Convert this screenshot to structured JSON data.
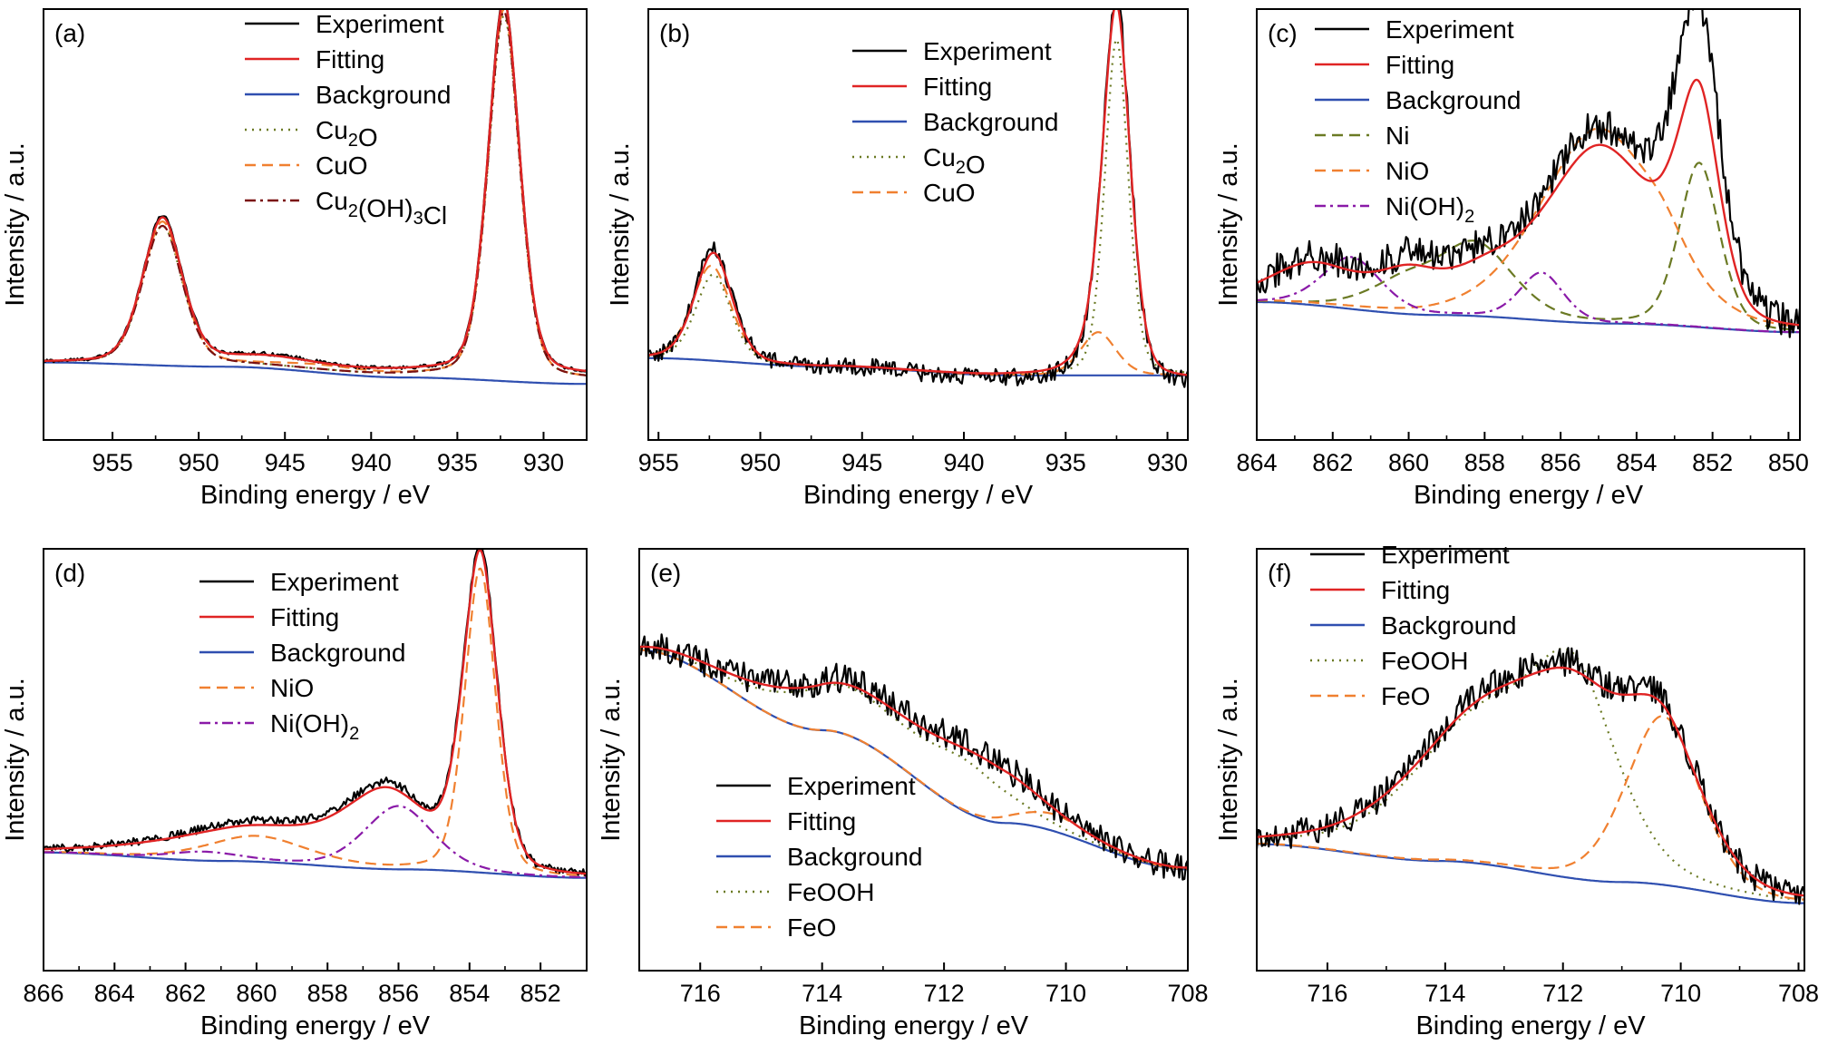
{
  "colors": {
    "Experiment": "#000000",
    "Fitting": "#e02424",
    "Background": "#2f4fb0",
    "Cu2O": "#6b7a24",
    "CuO": "#f08030",
    "Cu2(OH)3Cl": "#7a1010",
    "Ni": "#6b7a24",
    "NiO": "#f08030",
    "Ni(OH)2": "#8a1aa8",
    "FeOOH": "#6b7a24",
    "FeO": "#f08030"
  },
  "chart_data": [
    {
      "type": "line",
      "panel_label": "(a)",
      "xlabel": "Binding energy / eV",
      "ylabel": "Intensity / a.u.",
      "xlim": [
        959,
        927.5
      ],
      "ylim": [
        0,
        1
      ],
      "xticks": [
        955,
        950,
        945,
        940,
        935,
        930
      ],
      "legend_position": "top-center",
      "series": [
        {
          "name": "Experiment",
          "style": "solid",
          "peaks": [
            [
              952.1,
              0.34,
              1.2
            ],
            [
              932.3,
              0.87,
              0.95
            ],
            [
              946.0,
              0.018,
              2.5
            ]
          ],
          "bg": [
            0.18,
            0.18,
            0.16,
            0.15
          ],
          "noise": 0.004
        },
        {
          "name": "Fitting",
          "style": "solid",
          "peaks": [
            [
              952.1,
              0.335,
              1.2
            ],
            [
              932.3,
              0.865,
              0.95
            ],
            [
              946.0,
              0.015,
              2.5
            ]
          ],
          "bg": [
            0.18,
            0.18,
            0.16,
            0.15
          ]
        },
        {
          "name": "Background",
          "style": "solid",
          "peaks": [],
          "bg": [
            0.18,
            0.17,
            0.145,
            0.13
          ]
        },
        {
          "name": "Cu2O",
          "style": "dotted",
          "peaks": [
            [
              952.1,
              0.32,
              1.2
            ],
            [
              932.3,
              0.84,
              0.95
            ]
          ],
          "bg": [
            0.18,
            0.175,
            0.15,
            0.14
          ]
        },
        {
          "name": "CuO",
          "style": "dashed",
          "peaks": [
            [
              952.1,
              0.33,
              1.2
            ],
            [
              932.3,
              0.855,
              0.95
            ],
            [
              943.0,
              0.01,
              2.5
            ]
          ],
          "bg": [
            0.18,
            0.175,
            0.15,
            0.14
          ]
        },
        {
          "name": "Cu2(OH)3Cl",
          "style": "dashdot",
          "peaks": [
            [
              952.1,
              0.32,
              1.2
            ],
            [
              932.3,
              0.85,
              0.95
            ]
          ],
          "bg": [
            0.18,
            0.175,
            0.15,
            0.14
          ]
        }
      ],
      "legend": [
        "Experiment",
        "Fitting",
        "Background",
        "Cu2O",
        "CuO",
        "Cu2(OH)3Cl"
      ]
    },
    {
      "type": "line",
      "panel_label": "(b)",
      "xlabel": "Binding energy / eV",
      "ylabel": "Intensity / a.u.",
      "xlim": [
        955.5,
        929
      ],
      "ylim": [
        0,
        1
      ],
      "xticks": [
        955,
        950,
        945,
        940,
        935,
        930
      ],
      "legend_position": "top-right",
      "series": [
        {
          "name": "Experiment",
          "style": "solid",
          "peaks": [
            [
              952.3,
              0.26,
              0.95
            ],
            [
              932.5,
              0.87,
              0.7
            ],
            [
              933.5,
              0.05,
              1.0
            ]
          ],
          "bg": [
            0.19,
            0.17,
            0.14,
            0.13
          ],
          "noise": 0.02
        },
        {
          "name": "Fitting",
          "style": "solid",
          "peaks": [
            [
              952.3,
              0.25,
              0.95
            ],
            [
              932.5,
              0.84,
              0.7
            ],
            [
              933.5,
              0.05,
              1.0
            ]
          ],
          "bg": [
            0.19,
            0.17,
            0.15,
            0.14
          ]
        },
        {
          "name": "Background",
          "style": "solid",
          "peaks": [],
          "bg": [
            0.19,
            0.17,
            0.15,
            0.15
          ]
        },
        {
          "name": "Cu2O",
          "style": "dotted",
          "peaks": [
            [
              952.3,
              0.2,
              0.9
            ],
            [
              932.5,
              0.78,
              0.6
            ]
          ],
          "bg": [
            0.19,
            0.17,
            0.15,
            0.15
          ]
        },
        {
          "name": "CuO",
          "style": "dashed",
          "peaks": [
            [
              952.4,
              0.22,
              1.0
            ],
            [
              933.4,
              0.1,
              0.9
            ]
          ],
          "bg": [
            0.19,
            0.17,
            0.15,
            0.15
          ]
        }
      ],
      "legend": [
        "Experiment",
        "Fitting",
        "Background",
        "Cu2O",
        "CuO"
      ]
    },
    {
      "type": "line",
      "panel_label": "(c)",
      "xlabel": "Binding energy / eV",
      "ylabel": "Intensity / a.u.",
      "xlim": [
        864,
        849.7
      ],
      "ylim": [
        0,
        1
      ],
      "xticks": [
        864,
        862,
        860,
        858,
        856,
        854,
        852,
        850
      ],
      "legend_position": "top-left",
      "series": [
        {
          "name": "Experiment",
          "style": "solid",
          "peaks": [
            [
              862.5,
              0.1,
              1.2
            ],
            [
              860.0,
              0.1,
              0.9
            ],
            [
              858.0,
              0.09,
              1.0
            ],
            [
              855.0,
              0.44,
              1.5
            ],
            [
              852.35,
              0.48,
              0.55
            ],
            [
              852.6,
              0.2,
              0.8
            ]
          ],
          "bg": [
            0.32,
            0.29,
            0.27,
            0.25
          ],
          "noise": 0.04
        },
        {
          "name": "Fitting",
          "style": "solid",
          "peaks": [
            [
              862.5,
              0.09,
              1.2
            ],
            [
              860.0,
              0.08,
              0.9
            ],
            [
              858.0,
              0.07,
              1.0
            ],
            [
              855.0,
              0.4,
              1.5
            ],
            [
              852.35,
              0.45,
              0.55
            ],
            [
              853.1,
              0.05,
              0.8
            ]
          ],
          "bg": [
            0.32,
            0.29,
            0.27,
            0.25
          ]
        },
        {
          "name": "Background",
          "style": "solid",
          "peaks": [],
          "bg": [
            0.32,
            0.29,
            0.27,
            0.25
          ]
        },
        {
          "name": "Ni",
          "style": "dashed",
          "peaks": [
            [
              860.1,
              0.07,
              1.0
            ],
            [
              858.2,
              0.16,
              1.0
            ],
            [
              852.35,
              0.38,
              0.55
            ]
          ],
          "bg": [
            0.32,
            0.29,
            0.27,
            0.25
          ]
        },
        {
          "name": "NiO",
          "style": "dashed",
          "peaks": [
            [
              855.0,
              0.45,
              1.6
            ],
            [
              853.3,
              0.05,
              0.6
            ]
          ],
          "bg": [
            0.32,
            0.29,
            0.27,
            0.25
          ]
        },
        {
          "name": "Ni(OH)2",
          "style": "dashdot",
          "peaks": [
            [
              861.5,
              0.12,
              0.8
            ],
            [
              856.5,
              0.11,
              0.6
            ]
          ],
          "bg": [
            0.32,
            0.29,
            0.27,
            0.25
          ]
        }
      ],
      "legend": [
        "Experiment",
        "Fitting",
        "Background",
        "Ni",
        "NiO",
        "Ni(OH)2"
      ]
    },
    {
      "type": "line",
      "panel_label": "(d)",
      "xlabel": "Binding energy / eV",
      "ylabel": "Intensity / a.u.",
      "xlim": [
        866,
        850.7
      ],
      "ylim": [
        0,
        1
      ],
      "xticks": [
        866,
        864,
        862,
        860,
        858,
        856,
        854,
        852
      ],
      "legend_position": "top-center",
      "series": [
        {
          "name": "Experiment",
          "style": "solid",
          "peaks": [
            [
              853.7,
              0.75,
              0.5
            ],
            [
              856.3,
              0.17,
              1.2
            ],
            [
              860.0,
              0.09,
              2.5
            ]
          ],
          "bg": [
            0.28,
            0.26,
            0.24,
            0.22
          ],
          "noise": 0.01
        },
        {
          "name": "Fitting",
          "style": "solid",
          "peaks": [
            [
              853.7,
              0.74,
              0.5
            ],
            [
              856.3,
              0.16,
              1.2
            ],
            [
              860.0,
              0.08,
              2.5
            ]
          ],
          "bg": [
            0.28,
            0.26,
            0.24,
            0.22
          ]
        },
        {
          "name": "Background",
          "style": "solid",
          "peaks": [],
          "bg": [
            0.28,
            0.26,
            0.24,
            0.22
          ]
        },
        {
          "name": "NiO",
          "style": "dashed",
          "peaks": [
            [
              853.7,
              0.72,
              0.45
            ],
            [
              860.0,
              0.06,
              1.5
            ]
          ],
          "bg": [
            0.28,
            0.26,
            0.24,
            0.22
          ]
        },
        {
          "name": "Ni(OH)2",
          "style": "dashdot",
          "peaks": [
            [
              856.0,
              0.15,
              1.0
            ],
            [
              861.5,
              0.02,
              1.0
            ]
          ],
          "bg": [
            0.28,
            0.26,
            0.24,
            0.22
          ]
        }
      ],
      "legend": [
        "Experiment",
        "Fitting",
        "Background",
        "NiO",
        "Ni(OH)2"
      ]
    },
    {
      "type": "line",
      "panel_label": "(e)",
      "xlabel": "Binding energy / eV",
      "ylabel": "Intensity / a.u.",
      "xlim": [
        717,
        708
      ],
      "ylim": [
        0,
        1
      ],
      "xticks": [
        716,
        714,
        712,
        710,
        708
      ],
      "legend_position": "bottom-left",
      "series": [
        {
          "name": "Experiment",
          "style": "solid",
          "peaks": [
            [
              713.6,
              0.12,
              1.3
            ],
            [
              711.4,
              0.13,
              0.9
            ]
          ],
          "bg": [
            0.76,
            0.57,
            0.35,
            0.24
          ],
          "noise": 0.035
        },
        {
          "name": "Fitting",
          "style": "solid",
          "peaks": [
            [
              713.6,
              0.11,
              1.3
            ],
            [
              711.4,
              0.12,
              0.9
            ]
          ],
          "bg": [
            0.76,
            0.57,
            0.35,
            0.24
          ]
        },
        {
          "name": "Background",
          "style": "solid",
          "peaks": [],
          "bg": [
            0.76,
            0.57,
            0.35,
            0.24
          ]
        },
        {
          "name": "FeOOH",
          "style": "dotted",
          "peaks": [
            [
              713.6,
              0.11,
              1.1
            ],
            [
              711.6,
              0.1,
              0.7
            ]
          ],
          "bg": [
            0.76,
            0.57,
            0.35,
            0.24
          ]
        },
        {
          "name": "FeO",
          "style": "dashed",
          "peaks": [
            [
              710.2,
              0.04,
              0.6
            ]
          ],
          "bg": [
            0.76,
            0.57,
            0.35,
            0.24
          ]
        }
      ],
      "legend": [
        "Experiment",
        "Fitting",
        "Background",
        "FeOOH",
        "FeO"
      ]
    },
    {
      "type": "line",
      "panel_label": "(f)",
      "xlabel": "Binding energy / eV",
      "ylabel": "Intensity / a.u.",
      "xlim": [
        717.2,
        707.9
      ],
      "ylim": [
        0,
        1
      ],
      "xticks": [
        716,
        714,
        712,
        710,
        708
      ],
      "legend_position": "top-left",
      "series": [
        {
          "name": "Experiment",
          "style": "solid",
          "peaks": [
            [
              713.4,
              0.33,
              1.3
            ],
            [
              711.8,
              0.32,
              0.9
            ],
            [
              710.3,
              0.33,
              0.7
            ]
          ],
          "bg": [
            0.3,
            0.26,
            0.21,
            0.16
          ],
          "noise": 0.035
        },
        {
          "name": "Fitting",
          "style": "solid",
          "peaks": [
            [
              713.4,
              0.32,
              1.3
            ],
            [
              711.8,
              0.31,
              0.9
            ],
            [
              710.3,
              0.32,
              0.7
            ]
          ],
          "bg": [
            0.3,
            0.26,
            0.21,
            0.16
          ]
        },
        {
          "name": "Background",
          "style": "solid",
          "peaks": [],
          "bg": [
            0.3,
            0.26,
            0.21,
            0.16
          ]
        },
        {
          "name": "FeOOH",
          "style": "dotted",
          "peaks": [
            [
              713.4,
              0.33,
              1.2
            ],
            [
              711.8,
              0.4,
              0.75
            ]
          ],
          "bg": [
            0.3,
            0.26,
            0.21,
            0.16
          ]
        },
        {
          "name": "FeO",
          "style": "dashed",
          "peaks": [
            [
              710.3,
              0.4,
              0.65
            ]
          ],
          "bg": [
            0.3,
            0.26,
            0.21,
            0.16
          ]
        }
      ],
      "legend": [
        "Experiment",
        "Fitting",
        "Background",
        "FeOOH",
        "FeO"
      ]
    }
  ]
}
